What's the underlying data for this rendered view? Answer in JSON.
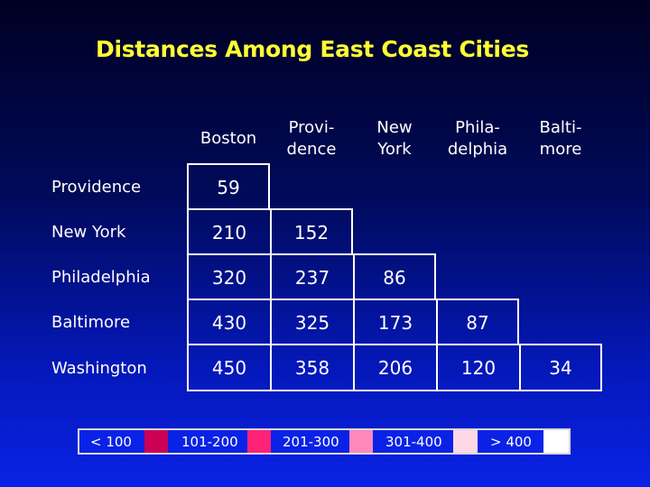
{
  "title": "Distances Among East Coast Cities",
  "columns": [
    "Boston",
    "Provi-\ndence",
    "New\nYork",
    "Phila-\ndelphia",
    "Balti-\nmore"
  ],
  "rows": [
    {
      "label": "Providence",
      "values": [
        "59"
      ]
    },
    {
      "label": "New York",
      "values": [
        "210",
        "152"
      ]
    },
    {
      "label": "Philadelphia",
      "values": [
        "320",
        "237",
        "86"
      ]
    },
    {
      "label": "Baltimore",
      "values": [
        "430",
        "325",
        "173",
        "87"
      ]
    },
    {
      "label": "Washington",
      "values": [
        "450",
        "358",
        "206",
        "120",
        "34"
      ]
    }
  ],
  "legend": [
    {
      "label": "< 100",
      "color": "#cc0055"
    },
    {
      "label": "101-200",
      "color": "#ff2277"
    },
    {
      "label": "201-300",
      "color": "#ff88bb"
    },
    {
      "label": "301-400",
      "color": "#ffd8e8"
    },
    {
      "label": "> 400",
      "color": "#ffffff"
    }
  ]
}
